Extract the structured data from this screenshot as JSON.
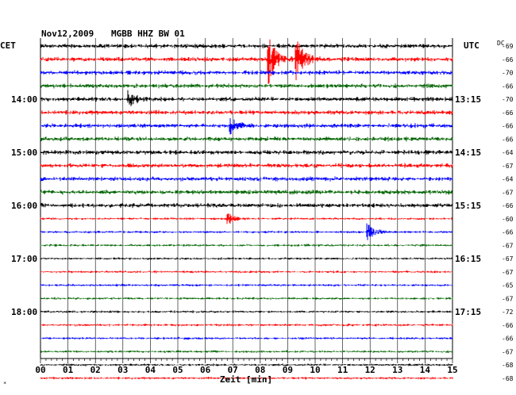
{
  "header": {
    "date": "Nov12,2009",
    "station": "MGBB HHZ BW 01",
    "left_zone": "CET",
    "right_zone": "UTC",
    "dc_label": "DC"
  },
  "xaxis": {
    "label": "Zeit [min]",
    "ticks": [
      "00",
      "01",
      "02",
      "03",
      "04",
      "05",
      "06",
      "07",
      "08",
      "09",
      "10",
      "11",
      "12",
      "13",
      "14",
      "15"
    ]
  },
  "left_hours": [
    "14:00",
    "15:00",
    "16:00",
    "17:00",
    "18:00"
  ],
  "right_hours": [
    "13:15",
    "14:15",
    "15:15",
    "16:15",
    "17:15"
  ],
  "footer_mark": "*",
  "chart_data": {
    "type": "line",
    "title": "",
    "xlabel": "Zeit [min]",
    "ylabel": "",
    "xlim": [
      0,
      15
    ],
    "colors": [
      "#000000",
      "#ff0000",
      "#0000ff",
      "#006400"
    ],
    "dc_values": [
      -69,
      -66,
      -70,
      -66,
      -70,
      -66,
      -66,
      -66,
      -64,
      -67,
      -64,
      -67,
      -66,
      -60,
      -66,
      -67,
      -67,
      -67,
      -65,
      -67,
      -72,
      -66,
      -66,
      -67,
      -68,
      -68
    ],
    "events": [
      {
        "line": 1,
        "minute": 8.3,
        "amp": 1.0
      },
      {
        "line": 1,
        "minute": 9.3,
        "amp": 1.0
      },
      {
        "line": 4,
        "minute": 3.2,
        "amp": 0.35
      },
      {
        "line": 6,
        "minute": 6.9,
        "amp": 0.35
      },
      {
        "line": 13,
        "minute": 6.8,
        "amp": 0.25
      },
      {
        "line": 14,
        "minute": 11.9,
        "amp": 0.35
      }
    ]
  }
}
